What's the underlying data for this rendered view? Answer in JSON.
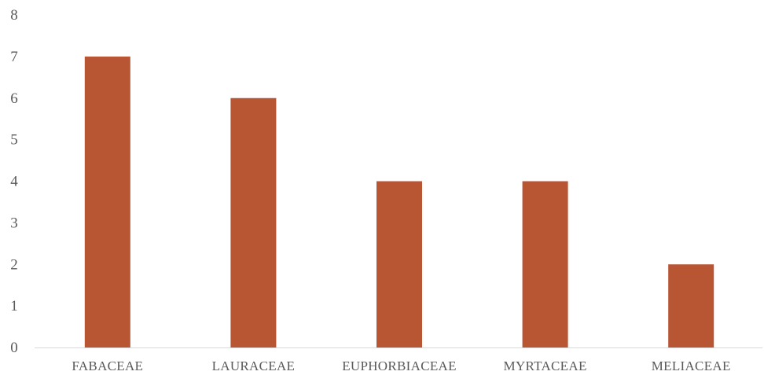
{
  "chart_data": {
    "type": "bar",
    "title": "",
    "xlabel": "",
    "ylabel": "",
    "categories": [
      "FABACEAE",
      "LAURACEAE",
      "EUPHORBIACEAE",
      "MYRTACEAE",
      "MELIACEAE"
    ],
    "values": [
      7,
      6,
      4,
      4,
      2
    ],
    "ylim": [
      0,
      8
    ],
    "yticks": [
      "0",
      "1",
      "2",
      "3",
      "4",
      "5",
      "6",
      "7",
      "8"
    ],
    "grid": false,
    "legend": "none",
    "colors": {
      "bar": "#b85533",
      "axis": "#d9d9d9",
      "text": "#595959"
    }
  }
}
